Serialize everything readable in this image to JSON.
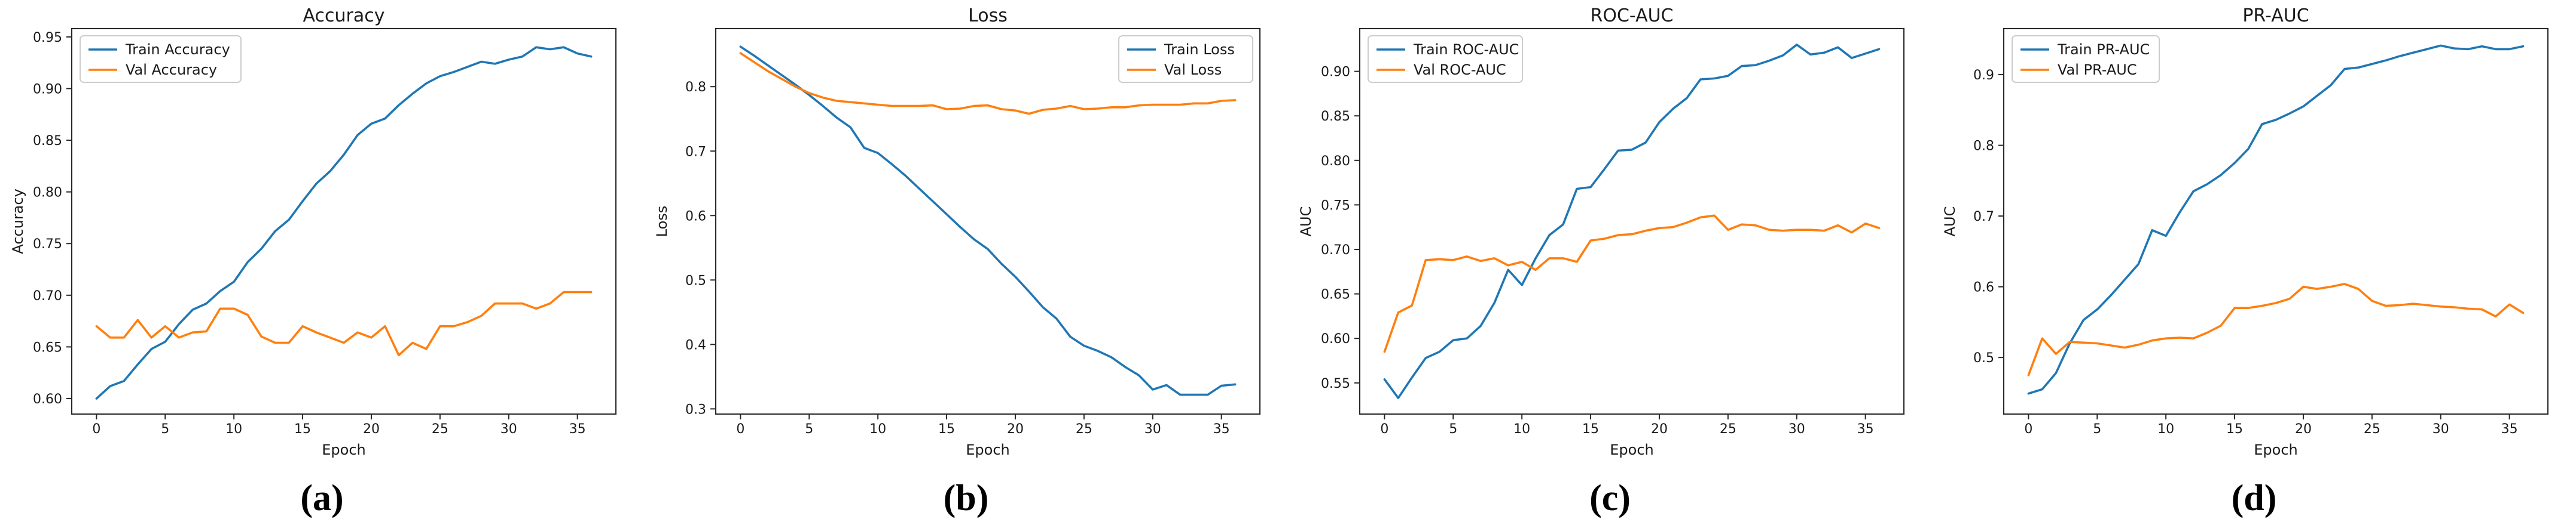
{
  "figure": {
    "background": "#ffffff",
    "text_color": "#1a1a1a",
    "spine_color": "#262626",
    "legend_border_color": "#cccccc",
    "train_color": "#1f77b4",
    "val_color": "#ff7f0e"
  },
  "chart_data": [
    {
      "type": "line",
      "title": "Accuracy",
      "xlabel": "Epoch",
      "ylabel": "Accuracy",
      "caption": "(a)",
      "legend_position": "upper-left",
      "grid": false,
      "xlim": [
        -1.8,
        37.8
      ],
      "ylim": [
        0.585,
        0.958
      ],
      "xticks": [
        0,
        5,
        10,
        15,
        20,
        25,
        30,
        35
      ],
      "xtick_labels": [
        "0",
        "5",
        "10",
        "15",
        "20",
        "25",
        "30",
        "35"
      ],
      "yticks": [
        0.6,
        0.65,
        0.7,
        0.75,
        0.8,
        0.85,
        0.9,
        0.95
      ],
      "ytick_labels": [
        "0.60",
        "0.65",
        "0.70",
        "0.75",
        "0.80",
        "0.85",
        "0.90",
        "0.95"
      ],
      "x": [
        0,
        1,
        2,
        3,
        4,
        5,
        6,
        7,
        8,
        9,
        10,
        11,
        12,
        13,
        14,
        15,
        16,
        17,
        18,
        19,
        20,
        21,
        22,
        23,
        24,
        25,
        26,
        27,
        28,
        29,
        30,
        31,
        32,
        33,
        34,
        35,
        36
      ],
      "series": [
        {
          "name": "Train Accuracy",
          "color": "#1f77b4",
          "values": [
            0.6,
            0.612,
            0.617,
            0.633,
            0.648,
            0.655,
            0.672,
            0.686,
            0.692,
            0.704,
            0.713,
            0.732,
            0.745,
            0.762,
            0.773,
            0.791,
            0.808,
            0.82,
            0.836,
            0.855,
            0.866,
            0.871,
            0.884,
            0.895,
            0.905,
            0.912,
            0.916,
            0.921,
            0.926,
            0.924,
            0.928,
            0.931,
            0.94,
            0.938,
            0.94,
            0.934,
            0.931
          ]
        },
        {
          "name": "Val Accuracy",
          "color": "#ff7f0e",
          "values": [
            0.67,
            0.659,
            0.659,
            0.676,
            0.659,
            0.67,
            0.659,
            0.664,
            0.665,
            0.687,
            0.687,
            0.681,
            0.66,
            0.654,
            0.654,
            0.67,
            0.664,
            0.659,
            0.654,
            0.664,
            0.659,
            0.67,
            0.642,
            0.654,
            0.648,
            0.67,
            0.67,
            0.674,
            0.68,
            0.692,
            0.692,
            0.692,
            0.687,
            0.692,
            0.703,
            0.703,
            0.703
          ]
        }
      ]
    },
    {
      "type": "line",
      "title": "Loss",
      "xlabel": "Epoch",
      "ylabel": "Loss",
      "caption": "(b)",
      "legend_position": "upper-right",
      "grid": false,
      "xlim": [
        -1.8,
        37.8
      ],
      "ylim": [
        0.292,
        0.89
      ],
      "xticks": [
        0,
        5,
        10,
        15,
        20,
        25,
        30,
        35
      ],
      "xtick_labels": [
        "0",
        "5",
        "10",
        "15",
        "20",
        "25",
        "30",
        "35"
      ],
      "yticks": [
        0.3,
        0.4,
        0.5,
        0.6,
        0.7,
        0.8
      ],
      "ytick_labels": [
        "0.3",
        "0.4",
        "0.5",
        "0.6",
        "0.7",
        "0.8"
      ],
      "x": [
        0,
        1,
        2,
        3,
        4,
        5,
        6,
        7,
        8,
        9,
        10,
        11,
        12,
        13,
        14,
        15,
        16,
        17,
        18,
        19,
        20,
        21,
        22,
        23,
        24,
        25,
        26,
        27,
        28,
        29,
        30,
        31,
        32,
        33,
        34,
        35,
        36
      ],
      "series": [
        {
          "name": "Train Loss",
          "color": "#1f77b4",
          "values": [
            0.862,
            0.848,
            0.833,
            0.818,
            0.803,
            0.787,
            0.77,
            0.752,
            0.737,
            0.705,
            0.697,
            0.68,
            0.662,
            0.642,
            0.622,
            0.602,
            0.582,
            0.563,
            0.548,
            0.525,
            0.505,
            0.482,
            0.458,
            0.44,
            0.412,
            0.398,
            0.39,
            0.38,
            0.365,
            0.352,
            0.33,
            0.337,
            0.322,
            0.322,
            0.322,
            0.336,
            0.338
          ]
        },
        {
          "name": "Val Loss",
          "color": "#ff7f0e",
          "values": [
            0.852,
            0.838,
            0.824,
            0.812,
            0.8,
            0.79,
            0.783,
            0.778,
            0.776,
            0.774,
            0.772,
            0.77,
            0.77,
            0.77,
            0.771,
            0.765,
            0.766,
            0.77,
            0.771,
            0.765,
            0.763,
            0.758,
            0.764,
            0.766,
            0.77,
            0.765,
            0.766,
            0.768,
            0.768,
            0.771,
            0.772,
            0.772,
            0.772,
            0.774,
            0.774,
            0.778,
            0.779
          ]
        }
      ]
    },
    {
      "type": "line",
      "title": "ROC-AUC",
      "xlabel": "Epoch",
      "ylabel": "AUC",
      "caption": "(c)",
      "legend_position": "upper-left",
      "grid": false,
      "xlim": [
        -1.8,
        37.8
      ],
      "ylim": [
        0.515,
        0.948
      ],
      "xticks": [
        0,
        5,
        10,
        15,
        20,
        25,
        30,
        35
      ],
      "xtick_labels": [
        "0",
        "5",
        "10",
        "15",
        "20",
        "25",
        "30",
        "35"
      ],
      "yticks": [
        0.55,
        0.6,
        0.65,
        0.7,
        0.75,
        0.8,
        0.85,
        0.9
      ],
      "ytick_labels": [
        "0.55",
        "0.60",
        "0.65",
        "0.70",
        "0.75",
        "0.80",
        "0.85",
        "0.90"
      ],
      "x": [
        0,
        1,
        2,
        3,
        4,
        5,
        6,
        7,
        8,
        9,
        10,
        11,
        12,
        13,
        14,
        15,
        16,
        17,
        18,
        19,
        20,
        21,
        22,
        23,
        24,
        25,
        26,
        27,
        28,
        29,
        30,
        31,
        32,
        33,
        34,
        35,
        36
      ],
      "series": [
        {
          "name": "Train ROC-AUC",
          "color": "#1f77b4",
          "values": [
            0.554,
            0.533,
            0.556,
            0.578,
            0.585,
            0.598,
            0.6,
            0.614,
            0.64,
            0.677,
            0.66,
            0.69,
            0.716,
            0.728,
            0.768,
            0.77,
            0.79,
            0.811,
            0.812,
            0.82,
            0.843,
            0.858,
            0.87,
            0.891,
            0.892,
            0.895,
            0.906,
            0.907,
            0.912,
            0.918,
            0.93,
            0.919,
            0.921,
            0.927,
            0.915,
            0.92,
            0.925
          ]
        },
        {
          "name": "Val ROC-AUC",
          "color": "#ff7f0e",
          "values": [
            0.585,
            0.629,
            0.637,
            0.688,
            0.689,
            0.688,
            0.692,
            0.687,
            0.69,
            0.682,
            0.686,
            0.677,
            0.69,
            0.69,
            0.686,
            0.71,
            0.712,
            0.716,
            0.717,
            0.721,
            0.724,
            0.725,
            0.73,
            0.736,
            0.738,
            0.722,
            0.728,
            0.727,
            0.722,
            0.721,
            0.722,
            0.722,
            0.721,
            0.727,
            0.719,
            0.729,
            0.724
          ]
        }
      ]
    },
    {
      "type": "line",
      "title": "PR-AUC",
      "xlabel": "Epoch",
      "ylabel": "AUC",
      "caption": "(d)",
      "legend_position": "upper-left",
      "grid": false,
      "xlim": [
        -1.8,
        37.8
      ],
      "ylim": [
        0.42,
        0.965
      ],
      "xticks": [
        0,
        5,
        10,
        15,
        20,
        25,
        30,
        35
      ],
      "xtick_labels": [
        "0",
        "5",
        "10",
        "15",
        "20",
        "25",
        "30",
        "35"
      ],
      "yticks": [
        0.5,
        0.6,
        0.7,
        0.8,
        0.9
      ],
      "ytick_labels": [
        "0.5",
        "0.6",
        "0.7",
        "0.8",
        "0.9"
      ],
      "x": [
        0,
        1,
        2,
        3,
        4,
        5,
        6,
        7,
        8,
        9,
        10,
        11,
        12,
        13,
        14,
        15,
        16,
        17,
        18,
        19,
        20,
        21,
        22,
        23,
        24,
        25,
        26,
        27,
        28,
        29,
        30,
        31,
        32,
        33,
        34,
        35,
        36
      ],
      "series": [
        {
          "name": "Train PR-AUC",
          "color": "#1f77b4",
          "values": [
            0.449,
            0.455,
            0.478,
            0.52,
            0.553,
            0.568,
            0.588,
            0.61,
            0.632,
            0.68,
            0.672,
            0.705,
            0.735,
            0.745,
            0.758,
            0.775,
            0.795,
            0.83,
            0.836,
            0.845,
            0.855,
            0.87,
            0.885,
            0.908,
            0.91,
            0.915,
            0.92,
            0.926,
            0.931,
            0.936,
            0.941,
            0.937,
            0.936,
            0.94,
            0.936,
            0.936,
            0.94
          ]
        },
        {
          "name": "Val PR-AUC",
          "color": "#ff7f0e",
          "values": [
            0.475,
            0.527,
            0.505,
            0.522,
            0.521,
            0.52,
            0.517,
            0.514,
            0.518,
            0.524,
            0.527,
            0.528,
            0.527,
            0.535,
            0.545,
            0.57,
            0.57,
            0.573,
            0.577,
            0.583,
            0.6,
            0.597,
            0.6,
            0.604,
            0.597,
            0.58,
            0.573,
            0.574,
            0.576,
            0.574,
            0.572,
            0.571,
            0.569,
            0.568,
            0.558,
            0.575,
            0.563
          ]
        }
      ]
    }
  ]
}
